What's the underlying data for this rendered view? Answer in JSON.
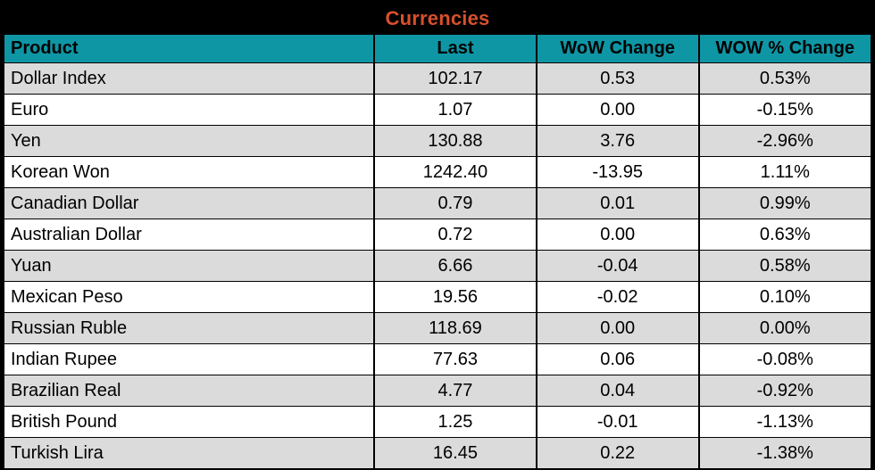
{
  "title": "Currencies",
  "colors": {
    "title_text": "#d8502c",
    "title_bg": "#000000",
    "header_bg": "#0f96a5",
    "header_text": "#000000",
    "row_alt_bg": "#dbdbdb",
    "row_bg": "#ffffff",
    "grid_border": "#000000"
  },
  "table": {
    "columns": [
      "Product",
      "Last",
      "WoW Change",
      "WOW % Change"
    ],
    "rows": [
      {
        "product": "Dollar Index",
        "last": "102.17",
        "wow": "0.53",
        "wow_pct": "0.53%"
      },
      {
        "product": "Euro",
        "last": "1.07",
        "wow": "0.00",
        "wow_pct": "-0.15%"
      },
      {
        "product": "Yen",
        "last": "130.88",
        "wow": "3.76",
        "wow_pct": "-2.96%"
      },
      {
        "product": "Korean Won",
        "last": "1242.40",
        "wow": "-13.95",
        "wow_pct": "1.11%"
      },
      {
        "product": "Canadian Dollar",
        "last": "0.79",
        "wow": "0.01",
        "wow_pct": "0.99%"
      },
      {
        "product": "Australian Dollar",
        "last": "0.72",
        "wow": "0.00",
        "wow_pct": "0.63%"
      },
      {
        "product": "Yuan",
        "last": "6.66",
        "wow": "-0.04",
        "wow_pct": "0.58%"
      },
      {
        "product": "Mexican Peso",
        "last": "19.56",
        "wow": "-0.02",
        "wow_pct": "0.10%"
      },
      {
        "product": "Russian Ruble",
        "last": "118.69",
        "wow": "0.00",
        "wow_pct": "0.00%"
      },
      {
        "product": "Indian Rupee",
        "last": "77.63",
        "wow": "0.06",
        "wow_pct": "-0.08%"
      },
      {
        "product": "Brazilian Real",
        "last": "4.77",
        "wow": "0.04",
        "wow_pct": "-0.92%"
      },
      {
        "product": "British Pound",
        "last": "1.25",
        "wow": "-0.01",
        "wow_pct": "-1.13%"
      },
      {
        "product": "Turkish Lira",
        "last": "16.45",
        "wow": "0.22",
        "wow_pct": "-1.38%"
      }
    ]
  },
  "chart_data": {
    "type": "table",
    "title": "Currencies",
    "columns": [
      "Product",
      "Last",
      "WoW Change",
      "WOW % Change"
    ],
    "rows": [
      [
        "Dollar Index",
        102.17,
        0.53,
        0.53
      ],
      [
        "Euro",
        1.07,
        0.0,
        -0.15
      ],
      [
        "Yen",
        130.88,
        3.76,
        -2.96
      ],
      [
        "Korean Won",
        1242.4,
        -13.95,
        1.11
      ],
      [
        "Canadian Dollar",
        0.79,
        0.01,
        0.99
      ],
      [
        "Australian Dollar",
        0.72,
        0.0,
        0.63
      ],
      [
        "Yuan",
        6.66,
        -0.04,
        0.58
      ],
      [
        "Mexican Peso",
        19.56,
        -0.02,
        0.1
      ],
      [
        "Russian Ruble",
        118.69,
        0.0,
        0.0
      ],
      [
        "Indian Rupee",
        77.63,
        0.06,
        -0.08
      ],
      [
        "Brazilian Real",
        4.77,
        0.04,
        -0.92
      ],
      [
        "British Pound",
        1.25,
        -0.01,
        -1.13
      ],
      [
        "Turkish Lira",
        16.45,
        0.22,
        -1.38
      ]
    ],
    "wow_pct_unit": "%"
  }
}
